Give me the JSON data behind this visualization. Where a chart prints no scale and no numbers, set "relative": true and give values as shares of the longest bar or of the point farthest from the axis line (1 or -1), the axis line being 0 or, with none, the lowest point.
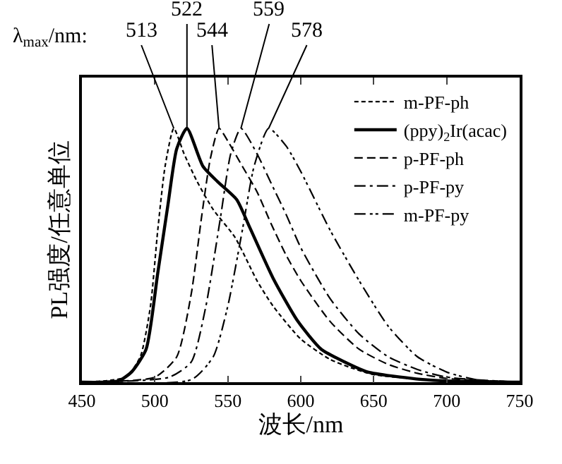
{
  "chart_data": {
    "type": "line",
    "relative": true,
    "xlabel": "波长/nm",
    "ylabel": "PL强度/任意单位",
    "xlim": [
      450,
      750
    ],
    "xticks": [
      450,
      500,
      550,
      600,
      650,
      700,
      750
    ],
    "tick_labels": "x",
    "legend": "top right",
    "annotations": [
      "λ$_{max}$/nm:",
      {
        "text": "513",
        "x": 513,
        "y": 1
      },
      {
        "text": "522",
        "x": 522,
        "y": 1
      },
      {
        "text": "544",
        "x": 544,
        "y": 1
      },
      {
        "text": "559",
        "x": 559,
        "y": 1
      },
      {
        "text": "578",
        "x": 578,
        "y": 1
      }
    ],
    "series": [
      {
        "name": "m-PF-ph",
        "color": "#000000",
        "line_style": "dotted",
        "x": [
          450,
          480,
          490,
          497,
          502,
          507,
          513,
          520,
          529,
          540,
          555,
          570,
          581,
          600,
          620,
          633,
          650,
          700,
          750
        ],
        "values": [
          0,
          0.02,
          0.1,
          0.3,
          0.6,
          0.85,
          1,
          0.9,
          0.79,
          0.68,
          0.57,
          0.4,
          0.3,
          0.17,
          0.09,
          0.06,
          0.03,
          0.005,
          0
        ]
      },
      {
        "name": "(ppy)$_{2}$Ir(acac)",
        "color": "#000000",
        "line_style": "solid",
        "x": [
          450,
          475,
          484,
          494,
          502,
          509,
          515,
          522,
          533,
          543,
          556,
          565,
          581,
          598,
          614,
          630,
          646,
          679,
          700,
          750
        ],
        "values": [
          0,
          0.005,
          0.04,
          0.13,
          0.43,
          0.7,
          0.92,
          1,
          0.85,
          0.79,
          0.72,
          0.61,
          0.41,
          0.24,
          0.13,
          0.08,
          0.04,
          0.013,
          0.005,
          0
        ]
      },
      {
        "name": "p-PF-ph",
        "color": "#000000",
        "line_style": "dashed",
        "x": [
          450,
          500,
          515,
          525,
          532,
          538,
          544,
          550,
          560,
          570,
          580,
          590,
          600,
          620,
          640,
          660,
          680,
          700,
          750
        ],
        "values": [
          0,
          0.02,
          0.1,
          0.35,
          0.65,
          0.88,
          1,
          0.95,
          0.85,
          0.75,
          0.62,
          0.5,
          0.4,
          0.24,
          0.13,
          0.07,
          0.035,
          0.015,
          0
        ]
      },
      {
        "name": "p-PF-py",
        "color": "#000000",
        "line_style": "dashdot",
        "x": [
          450,
          510,
          525,
          535,
          545,
          552,
          559,
          570,
          580,
          590,
          600,
          620,
          640,
          660,
          680,
          700,
          750
        ],
        "values": [
          0,
          0.02,
          0.08,
          0.3,
          0.65,
          0.9,
          1,
          0.9,
          0.78,
          0.66,
          0.53,
          0.33,
          0.19,
          0.1,
          0.05,
          0.02,
          0
        ]
      },
      {
        "name": "m-PF-py",
        "color": "#000000",
        "line_style": "dashdotdot",
        "x": [
          450,
          525,
          540,
          550,
          560,
          568,
          578,
          590,
          600,
          620,
          640,
          660,
          680,
          700,
          720,
          750
        ],
        "values": [
          0,
          0.01,
          0.1,
          0.3,
          0.6,
          0.85,
          1,
          0.93,
          0.83,
          0.6,
          0.4,
          0.22,
          0.1,
          0.04,
          0.01,
          0
        ]
      }
    ]
  }
}
